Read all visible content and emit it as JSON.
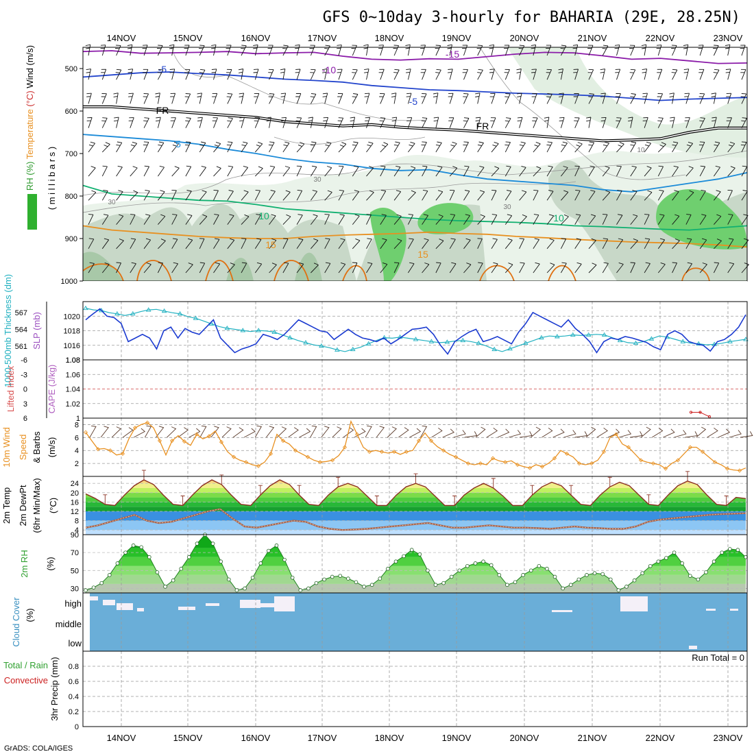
{
  "title": "GFS 0~10day 3-hourly for BAHARIA (29E, 28.25N)",
  "credit": "GrADS: COLA/IGES",
  "chart_data": [
    {
      "type": "line",
      "panel": "upper-air",
      "x": [
        "14NOV",
        "15NOV",
        "16NOV",
        "17NOV",
        "18NOV",
        "19NOV",
        "20NOV",
        "21NOV",
        "22NOV",
        "23NOV"
      ],
      "ylabel_parts": [
        {
          "text": "RH (%)",
          "color": "#2f9a2f"
        },
        {
          "text": "Temperature",
          "color": "#e89020"
        },
        {
          "text": "(°C)",
          "color": "#cc3030"
        },
        {
          "text": "Wind (m/s)",
          "color": "#000000"
        }
      ],
      "ylabel_inner": "( m i l l i b a r s )",
      "yticks": [
        500,
        600,
        700,
        800,
        900,
        1000
      ],
      "ylim": [
        1000,
        450
      ],
      "contour_labels": [
        {
          "text": "-15",
          "color": "#8a1aa8"
        },
        {
          "text": "-10",
          "color": "#8a1aa8"
        },
        {
          "text": "-5",
          "color": "#2244cc"
        },
        {
          "text": "-5",
          "color": "#2244cc"
        },
        {
          "text": "FR",
          "color": "#000000"
        },
        {
          "text": "FR",
          "color": "#000000"
        },
        {
          "text": "5",
          "color": "#1a8ad8"
        },
        {
          "text": "10",
          "color": "#10b070"
        },
        {
          "text": "10",
          "color": "#10b070"
        },
        {
          "text": "15",
          "color": "#e89020"
        },
        {
          "text": "15",
          "color": "#e89020"
        },
        {
          "text": "30",
          "color": "#888888"
        },
        {
          "text": "30",
          "color": "#888888"
        },
        {
          "text": "10",
          "color": "#888888"
        },
        {
          "text": "30",
          "color": "#888888"
        }
      ],
      "series": [
        {
          "color": "#8a1aa8",
          "values": [
            -17,
            -16.5,
            -16,
            -16,
            -15.5,
            -15,
            -15,
            -15,
            -14,
            -13
          ]
        },
        {
          "color": "#2244cc",
          "values": [
            -8,
            -7,
            -6.5,
            -6,
            -5.5,
            -5,
            -4.8,
            -4.5,
            -4.3,
            -4.2
          ]
        },
        {
          "color": "#000000",
          "values": [
            0,
            0,
            0,
            0,
            0,
            0,
            0,
            0,
            0,
            0
          ]
        },
        {
          "color": "#1a8ad8",
          "values": [
            5,
            5,
            5,
            5,
            5,
            5,
            5,
            5,
            5,
            5
          ]
        },
        {
          "color": "#10b070",
          "values": [
            10,
            10,
            10,
            10,
            10,
            10,
            10,
            10,
            10,
            10
          ]
        },
        {
          "color": "#e89020",
          "values": [
            15,
            15,
            15,
            15,
            15,
            15,
            15,
            15,
            15,
            15
          ]
        }
      ]
    },
    {
      "type": "line",
      "panel": "slp-thickness",
      "ylabel_left": "1000-500mb Thickness (dm)",
      "ylabel_right": "SLP (mb)",
      "yticks_left": [
        561,
        564,
        567
      ],
      "yticks_right": [
        1016,
        1018,
        1020
      ],
      "bottom_tick": "1.08",
      "series": [
        {
          "name": "SLP",
          "color": "#1a3ad0",
          "values": [
            1019.5,
            1020.3,
            1021,
            1020,
            1019.8,
            1019,
            1016.5,
            1017,
            1017.5,
            1017,
            1015.5,
            1018,
            1018.5,
            1017,
            1018.3,
            1017.8,
            1017.5,
            1018.5,
            1019.5,
            1017,
            1016,
            1015,
            1015.5,
            1015.8,
            1016.2,
            1017.5,
            1017.2,
            1016.8,
            1017.5,
            1018.5,
            1019.5,
            1019,
            1018.5,
            1018,
            1017.8,
            1016.8,
            1017.5,
            1018.2,
            1017.5,
            1017,
            1016.8,
            1016.5,
            1017,
            1016.2,
            1016.8,
            1017.5,
            1018.2,
            1018.3,
            1018.5,
            1017.5,
            1016,
            1014.8,
            1016.5,
            1017.2,
            1017.8,
            1018.2,
            1016.5,
            1016.8,
            1017.2,
            1016.7,
            1016.2,
            1017.8,
            1019,
            1020.5,
            1020,
            1019.5,
            1019,
            1018.5,
            1019.5,
            1018.3,
            1017.5,
            1016.5,
            1015,
            1016.5,
            1017,
            1016.8,
            1017.2,
            1017,
            1016.7,
            1016.4,
            1015.8,
            1015.4,
            1017.5,
            1018,
            1017.5,
            1016.5,
            1016.2,
            1016,
            1015.2,
            1016.5,
            1016.8,
            1017.5,
            1018.5,
            1020.2
          ]
        },
        {
          "name": "Thickness",
          "color": "#20b0c0",
          "values": [
            567.8,
            567.5,
            567.4,
            567,
            566.8,
            566.5,
            566.8,
            567.2,
            567.5,
            567.6,
            567.3,
            567,
            566.8,
            566.3,
            566,
            565.5,
            565,
            564.5,
            564.2,
            564,
            563.8,
            563.6,
            563.8,
            563.7,
            563.5,
            563,
            562.5,
            562,
            561.6,
            561.2,
            561,
            560.7,
            560.3,
            560,
            560.4,
            560.8,
            561.4,
            562,
            562.5,
            562.4,
            562.6,
            562.4,
            562.2,
            562,
            561.8,
            561.6,
            561.7,
            561.9,
            562,
            561.8,
            561.5,
            561,
            560.4,
            560,
            560.5,
            561,
            561.5,
            562,
            562.5,
            562.8,
            562.7,
            562.8,
            563,
            562.9,
            563,
            563.1,
            563,
            562.5,
            562,
            561.6,
            561.5,
            561.8,
            562.3,
            562.8,
            562.6,
            562.2,
            561.8,
            561.5,
            561.4,
            561.2,
            561.3,
            561.5,
            561.8,
            562,
            562.2
          ]
        }
      ]
    },
    {
      "type": "line",
      "panel": "cape-li",
      "ylabel_left": "Lifted Index",
      "ylabel_right": "CAPE (J/kg)",
      "yticks_left": [
        "-6",
        "-3",
        "0",
        "3",
        "6"
      ],
      "yticks_right": [
        "1.08",
        "1.06",
        "1.04",
        "1.02",
        "1"
      ],
      "series": [
        {
          "name": "CAPE",
          "color": "#cc2020",
          "values": [
            1.008,
            1.008,
            1.002
          ]
        }
      ]
    },
    {
      "type": "line",
      "panel": "wind10m",
      "ylabel": "10m Wind Speed (m/s) & Barbs",
      "yticks": [
        2,
        4,
        6,
        8
      ],
      "ylim": [
        0,
        9
      ],
      "series": [
        {
          "name": "10m wind speed",
          "color": "#e89020",
          "values": [
            6.8,
            5.5,
            4.2,
            4.3,
            4.0,
            3.3,
            3.5,
            5.8,
            7.5,
            8.0,
            8.3,
            7.5,
            5.5,
            3.3,
            5.5,
            6.3,
            5.4,
            4.8,
            6.5,
            5.8,
            6.2,
            7.0,
            5.3,
            3.8,
            3.0,
            2.5,
            2.2,
            1.8,
            1.6,
            2.2,
            3.5,
            6.5,
            5.5,
            5.0,
            4.0,
            3.5,
            3.0,
            2.5,
            2.2,
            2.3,
            2.5,
            3.2,
            4.5,
            8.5,
            6.5,
            4.5,
            3.8,
            4.0,
            3.8,
            3.6,
            3.8,
            3.4,
            3.8,
            4.0,
            5.5,
            6.7,
            5.5,
            4.6,
            4.0,
            3.4,
            3.0,
            2.5,
            2.0,
            1.8,
            2.0,
            1.8,
            2.8,
            2.4,
            2.2,
            2.4,
            1.8,
            1.5,
            1.3,
            1.8,
            1.5,
            2.0,
            2.8,
            4.0,
            3.5,
            3.0,
            2.0,
            1.8,
            2.0,
            2.5,
            3.8,
            6.0,
            6.5,
            5.0,
            4.5,
            3.5,
            2.5,
            2.2,
            2.0,
            1.8,
            1.2,
            2.0,
            2.5,
            3.5,
            4.5,
            4.5,
            3.8,
            3.0,
            2.2,
            1.8,
            1.2,
            1.0,
            0.9,
            1.3
          ]
        }
      ]
    },
    {
      "type": "line",
      "panel": "temp2m",
      "ylabel": "2m Temp 2m DewPt (6hr Min/Max) (°C)",
      "yticks": [
        4,
        8,
        12,
        16,
        20,
        24
      ],
      "ylim": [
        2,
        27
      ],
      "series": [
        {
          "name": "2m Temp",
          "color": "#8b3020",
          "values": [
            19.5,
            17.5,
            15,
            14.5,
            19,
            23,
            25.5,
            23.5,
            19,
            15,
            14.5,
            19,
            23,
            25.5,
            23.5,
            19,
            15,
            14.5,
            19,
            23,
            25.5,
            23.5,
            19,
            15,
            14.5,
            19,
            22.5,
            24,
            22.5,
            18.5,
            14.5,
            14.5,
            19,
            22.5,
            24,
            22.5,
            18.5,
            14.5,
            14.5,
            19,
            22,
            24,
            22,
            18.5,
            14.5,
            14.5,
            19,
            22.5,
            24.5,
            23,
            19,
            15,
            14.5,
            19,
            22.5,
            24.5,
            23,
            19,
            15,
            14.5,
            19,
            23,
            25,
            23.5,
            19,
            15,
            14.5,
            18,
            17.5
          ]
        },
        {
          "name": "2m DewPt",
          "color": "#c08040",
          "values": [
            5,
            6,
            7.5,
            9,
            10.5,
            8,
            7,
            7.5,
            9,
            10.5,
            12,
            13,
            9,
            5.5,
            5,
            6,
            7,
            8,
            7.5,
            5.5,
            4.5,
            4,
            4.2,
            4.5,
            5,
            5.5,
            6,
            6.5,
            7,
            6,
            5,
            5,
            5.5,
            6,
            5.5,
            5,
            5,
            4.8,
            4.5,
            5,
            5.5,
            5,
            4.8,
            4.5,
            4.5,
            5.5,
            7.5,
            8.5,
            9,
            9.5,
            10,
            10.5,
            10.8,
            11,
            11.2
          ]
        }
      ]
    },
    {
      "type": "area",
      "panel": "rh2m",
      "ylabel": "2m RH (%)",
      "yticks": [
        30,
        50,
        70,
        90
      ],
      "ylim": [
        25,
        90
      ],
      "series": [
        {
          "name": "2m RH",
          "color": "#20a020",
          "values": [
            28,
            31,
            36,
            45,
            58,
            70,
            78,
            76,
            65,
            48,
            32,
            39,
            52,
            65,
            80,
            90,
            80,
            60,
            40,
            28,
            30,
            42,
            58,
            72,
            78,
            62,
            42,
            28,
            30,
            36,
            40,
            43,
            44,
            41,
            37,
            32,
            34,
            41,
            52,
            60,
            66,
            73,
            68,
            50,
            34,
            36,
            43,
            50,
            55,
            58,
            60,
            56,
            45,
            34,
            37,
            45,
            50,
            55,
            52,
            43,
            30,
            34,
            40,
            45,
            47,
            46,
            40,
            28,
            32,
            39,
            47,
            55,
            60,
            64,
            70,
            58,
            44,
            40,
            48,
            60,
            70,
            74,
            73,
            65
          ]
        }
      ]
    },
    {
      "type": "area",
      "panel": "cloud",
      "ylabel": "Cloud Cover (%)",
      "category_labels": [
        "high",
        "middle",
        "low"
      ],
      "series": [
        {
          "name": "high",
          "values": []
        },
        {
          "name": "middle",
          "values": []
        },
        {
          "name": "low",
          "values": []
        }
      ]
    },
    {
      "type": "bar",
      "panel": "precip",
      "ylabel": "3hr Precip (mm)",
      "legend_left": [
        {
          "text": "Total / Rain",
          "color": "#2fa02f"
        },
        {
          "text": "Convective",
          "color": "#cc2020"
        }
      ],
      "annotation": "Run Total = 0",
      "yticks": [
        "0",
        "0.2",
        "0.4",
        "0.6",
        "0.8"
      ],
      "ylim": [
        0,
        1
      ],
      "values": []
    }
  ]
}
